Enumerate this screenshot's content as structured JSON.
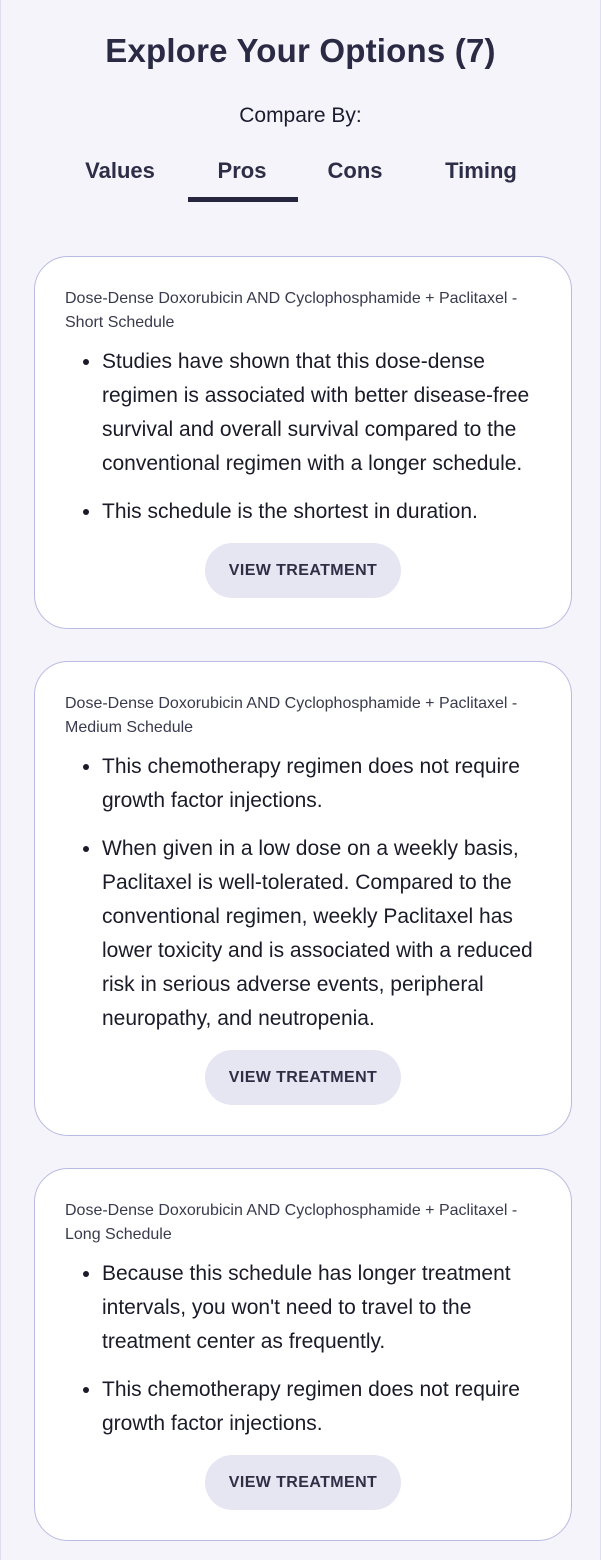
{
  "header": {
    "title": "Explore Your Options (7)",
    "compare_label": "Compare By:"
  },
  "tabs": [
    {
      "label": "Values",
      "active": false
    },
    {
      "label": "Pros",
      "active": true
    },
    {
      "label": "Cons",
      "active": false
    },
    {
      "label": "Timing",
      "active": false
    }
  ],
  "cards": [
    {
      "title": "Dose-Dense Doxorubicin AND Cyclophosphamide + Paclitaxel - Short Schedule",
      "pros": [
        "Studies have shown that this dose-dense regimen is associated with better disease-free survival and overall survival compared to the conventional regimen with a longer schedule.",
        "This schedule is the shortest in duration."
      ],
      "button_label": "VIEW TREATMENT"
    },
    {
      "title": "Dose-Dense Doxorubicin AND Cyclophosphamide + Paclitaxel - Medium Schedule",
      "pros": [
        "This chemotherapy regimen does not require growth factor injections.",
        "When given in a low dose on a weekly basis, Paclitaxel is well-tolerated. Compared to the conventional regimen, weekly Paclitaxel has lower toxicity and is associated with a reduced risk in serious adverse events, peripheral neuropathy, and neutropenia."
      ],
      "button_label": "VIEW TREATMENT"
    },
    {
      "title": "Dose-Dense Doxorubicin AND Cyclophosphamide + Paclitaxel - Long Schedule",
      "pros": [
        "Because this schedule has longer treatment intervals, you won't need to travel to the treatment center as frequently.",
        "This chemotherapy regimen does not require growth factor injections."
      ],
      "button_label": "VIEW TREATMENT"
    }
  ],
  "colors": {
    "background": "#f4f4fa",
    "card_border": "#babae3",
    "button_bg": "#e6e6f3",
    "active_tab_underline": "#26263f"
  }
}
